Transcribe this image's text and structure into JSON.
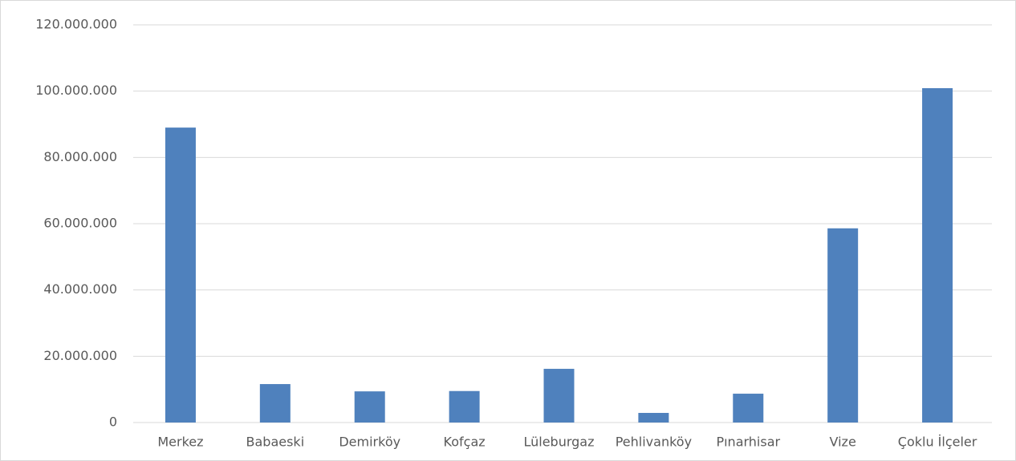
{
  "chart_data": {
    "type": "bar",
    "categories": [
      "Merkez",
      "Babaeski",
      "Demirköy",
      "Kofçaz",
      "Lüleburgaz",
      "Pehlivanköy",
      "Pınarhisar",
      "Vize",
      "Çoklu İlçeler"
    ],
    "values": [
      89000000,
      11600000,
      9400000,
      9500000,
      16200000,
      2900000,
      8700000,
      58600000,
      100900000
    ],
    "color": "#4f81bd",
    "ylim": [
      0,
      120000000
    ],
    "yticks": [
      0,
      {
        "value": 20000000,
        "label": "20.000.000"
      },
      {
        "value": 40000000,
        "label": "40.000.000"
      },
      {
        "value": 60000000,
        "label": "60.000.000"
      },
      {
        "value": 80000000,
        "label": "80.000.000"
      },
      {
        "value": 100000000,
        "label": "100.000.000"
      },
      {
        "value": 120000000,
        "label": "120.000.000"
      }
    ],
    "grid": true
  }
}
